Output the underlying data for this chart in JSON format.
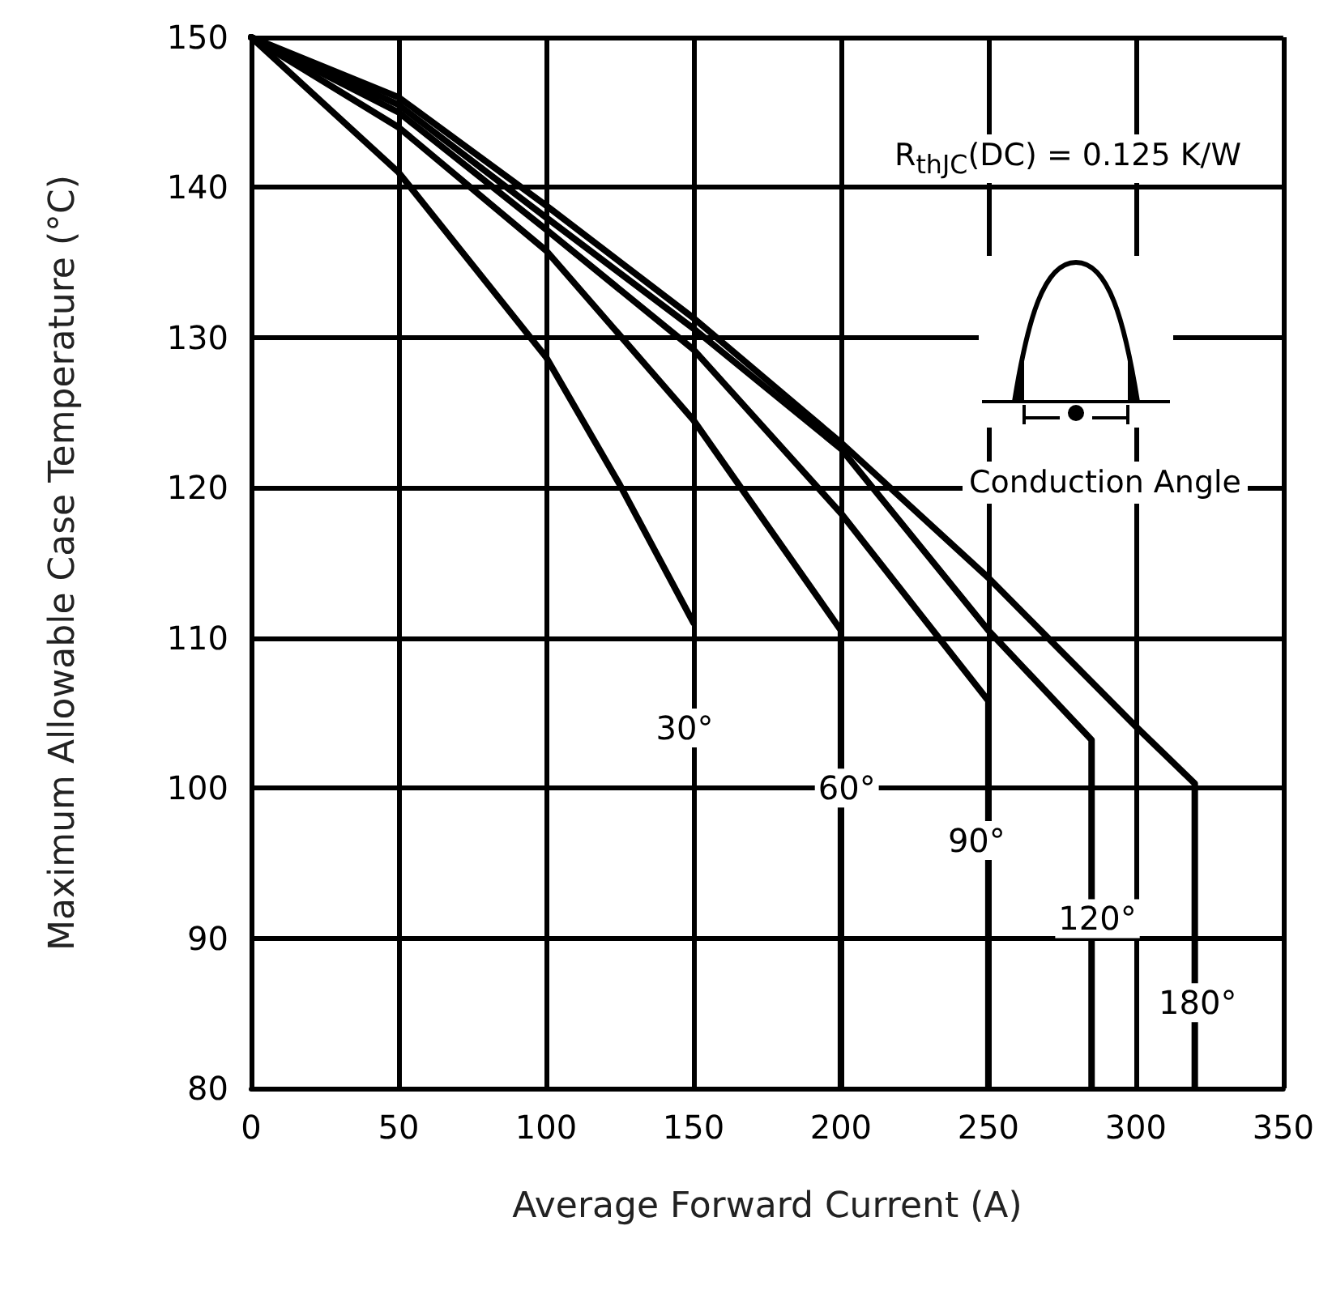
{
  "chart_data": {
    "type": "line",
    "xlabel": "Average Forward Current (A)",
    "ylabel": "Maximum Allowable Case Temperature (°C)",
    "xlim": [
      0,
      350
    ],
    "xticks": [
      0,
      50,
      100,
      150,
      200,
      250,
      300,
      350
    ],
    "ylim": [
      80,
      150
    ],
    "yticks": [
      80,
      90,
      100,
      110,
      120,
      130,
      140,
      150
    ],
    "grid": true,
    "marker": "none",
    "line_style": "solid",
    "series": [
      {
        "color": "#000000",
        "x": [
          0,
          50,
          100,
          125,
          150
        ],
        "values": [
          150,
          141,
          128.7,
          120.2,
          111
        ]
      },
      {
        "color": "#000000",
        "x": [
          0,
          50,
          100,
          150,
          200,
          200
        ],
        "values": [
          150,
          144,
          135.8,
          124.5,
          110.5,
          80
        ]
      },
      {
        "color": "#000000",
        "x": [
          0,
          50,
          100,
          150,
          200,
          250,
          250
        ],
        "values": [
          150,
          145,
          137.2,
          129.2,
          118.3,
          105.8,
          80
        ]
      },
      {
        "color": "#000000",
        "x": [
          0,
          50,
          100,
          150,
          200,
          250,
          285,
          285
        ],
        "values": [
          150,
          145.5,
          138,
          130.6,
          122.6,
          110.5,
          103.2,
          80
        ]
      },
      {
        "color": "#000000",
        "x": [
          0,
          50,
          100,
          150,
          200,
          250,
          300,
          320,
          320
        ],
        "values": [
          150,
          146,
          138.8,
          131.3,
          123,
          114,
          104.1,
          100.3,
          80
        ]
      }
    ],
    "annotations": [
      "R$_{thJC}$(DC) = 0.125 K/W",
      "Conduction Angle",
      {
        "text": "30°",
        "x": 147,
        "y": 104
      },
      {
        "text": "60°",
        "x": 202,
        "y": 100
      },
      {
        "text": "90°",
        "x": 246,
        "y": 96.5
      },
      {
        "text": "120°",
        "x": 287,
        "y": 91.3
      },
      {
        "text": "180°",
        "x": 321,
        "y": 85.7
      }
    ]
  }
}
